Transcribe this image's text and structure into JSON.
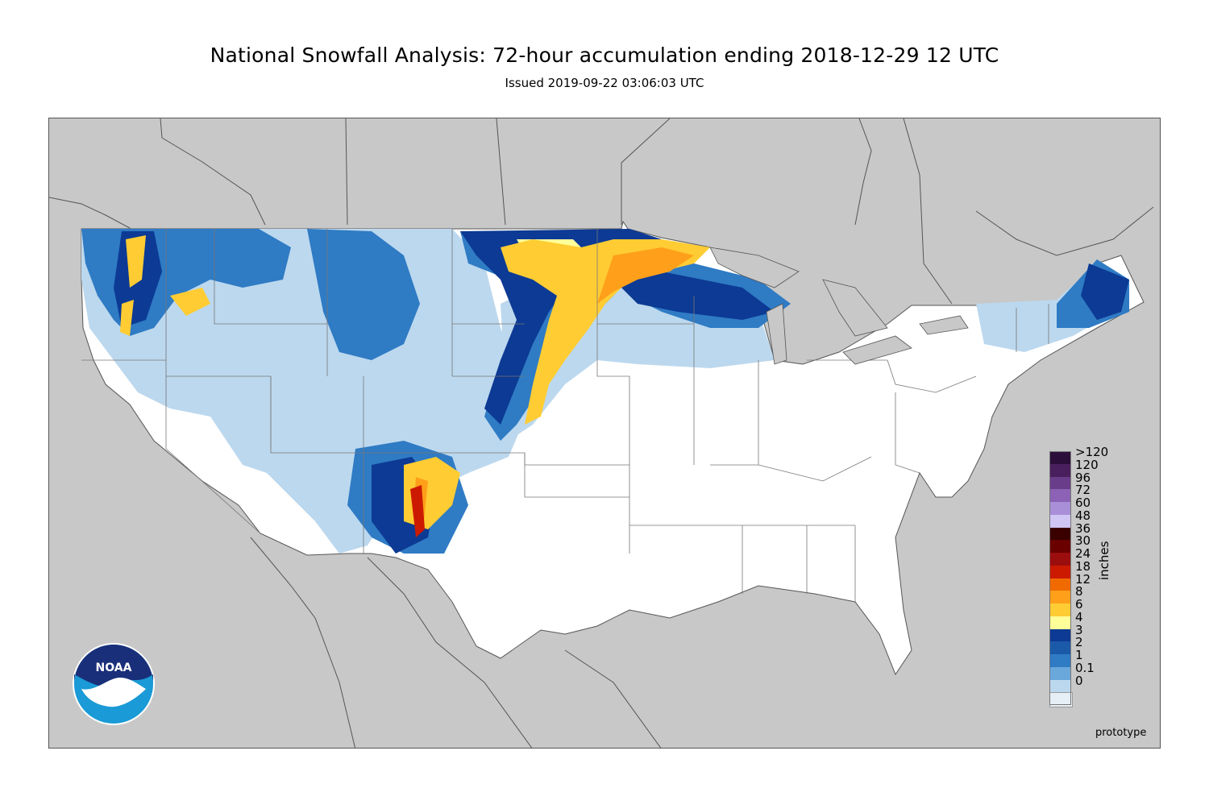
{
  "title": "National Snowfall Analysis: 72-hour accumulation ending 2018-12-29 12 UTC",
  "subtitle": "Issued 2019-09-22 03:06:03 UTC",
  "colors": {
    "land_outside": "#c8c8c8",
    "no_snow": "#ffffff",
    "border": "#555555"
  },
  "legend": {
    "unit": "inches",
    "bins": [
      {
        "label": ">120",
        "color": "#2b0f3a"
      },
      {
        "label": "120",
        "color": "#4a1f5e"
      },
      {
        "label": "96",
        "color": "#6a3d8a"
      },
      {
        "label": "72",
        "color": "#8b62b5"
      },
      {
        "label": "60",
        "color": "#a98fd8"
      },
      {
        "label": "48",
        "color": "#cfc6f4"
      },
      {
        "label": "36",
        "color": "#3a0000"
      },
      {
        "label": "30",
        "color": "#6b0000"
      },
      {
        "label": "24",
        "color": "#9c0d0d"
      },
      {
        "label": "18",
        "color": "#cc1a00"
      },
      {
        "label": "12",
        "color": "#f06a00"
      },
      {
        "label": "8",
        "color": "#ff9f1a"
      },
      {
        "label": "6",
        "color": "#ffcc33"
      },
      {
        "label": "4",
        "color": "#ffff99"
      },
      {
        "label": "3",
        "color": "#0c3a94"
      },
      {
        "label": "2",
        "color": "#1b5aa8"
      },
      {
        "label": "1",
        "color": "#2f7bc4"
      },
      {
        "label": "0.1",
        "color": "#6aa8dc"
      },
      {
        "label": "0",
        "color": "#bcd8ee"
      },
      {
        "label": "",
        "color": "#e6eef6"
      }
    ]
  },
  "logo_text": "NOAA",
  "footer": "prototype"
}
